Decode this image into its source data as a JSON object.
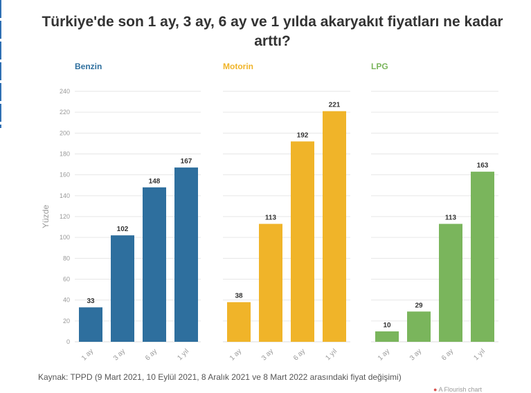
{
  "title": "Türkiye'de son 1 ay, 3 ay, 6 ay ve 1 yılda akaryakıt fiyatları ne kadar arttı?",
  "source": "Kaynak: TPPD (9 Mart 2021, 10 Eylül 2021, 8 Aralık 2021 ve 8 Mart 2022 arasındaki fiyat değişimi)",
  "footer_mark": "A Flourish chart",
  "chart_data": [
    {
      "type": "bar",
      "title": "Benzin",
      "color": "#2e6f9e",
      "categories": [
        "1 ay",
        "3 ay",
        "6 ay",
        "1 yıl"
      ],
      "values": [
        33,
        102,
        148,
        167
      ],
      "ylabel": "Yüzde",
      "ylim": [
        0,
        240
      ],
      "yticks": [
        0,
        20,
        40,
        60,
        80,
        100,
        120,
        140,
        160,
        180,
        200,
        220,
        240
      ],
      "grid": true
    },
    {
      "type": "bar",
      "title": "Motorin",
      "color": "#f0b429",
      "categories": [
        "1 ay",
        "3 ay",
        "6 ay",
        "1 yıl"
      ],
      "values": [
        38,
        113,
        192,
        221
      ],
      "ylim": [
        0,
        240
      ],
      "grid": true
    },
    {
      "type": "bar",
      "title": "LPG",
      "color": "#7ab55c",
      "categories": [
        "1 ay",
        "3 ay",
        "6 ay",
        "1 yıl"
      ],
      "values": [
        10,
        29,
        113,
        163
      ],
      "ylim": [
        0,
        240
      ],
      "grid": true
    }
  ]
}
